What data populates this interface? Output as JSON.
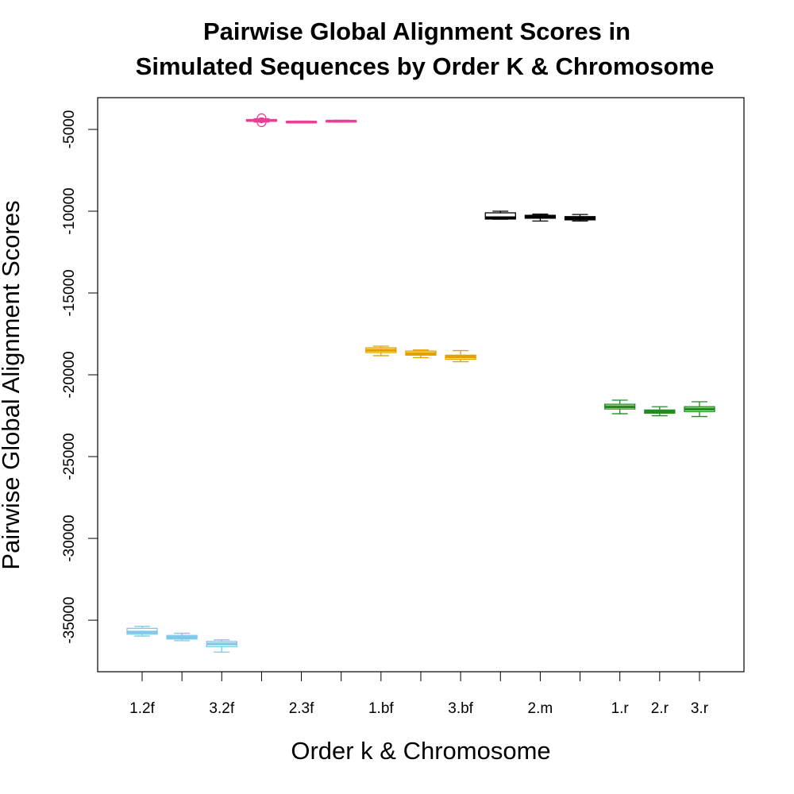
{
  "chart_data": {
    "type": "box",
    "title_lines": [
      "Pairwise Global Alignment Scores in",
      "Simulated Sequences by Order K & Chromosome"
    ],
    "x_label": "Order k & Chromosome",
    "y_label": "Pairwise Global Alignment Scores",
    "categories": [
      "1.2f",
      null,
      "3.2f",
      null,
      "2.3f",
      null,
      "1.bf",
      null,
      "3.bf",
      null,
      "2.m",
      null,
      "1.r",
      "2.r",
      "3.r"
    ],
    "colors": [
      "#7ec8e8",
      "#7ec8e8",
      "#7ec8e8",
      "#ee3d96",
      "#ee3d96",
      "#ee3d96",
      "#e69f00",
      "#e69f00",
      "#e69f00",
      "#000000",
      "#000000",
      "#000000",
      "#228b22",
      "#228b22",
      "#228b22"
    ],
    "boxes": [
      {
        "low": -35970,
        "q1": -35850,
        "median": -35730,
        "q3": -35500,
        "high": -35380
      },
      {
        "low": -36250,
        "q1": -36150,
        "median": -36050,
        "q3": -35930,
        "high": -35800
      },
      {
        "low": -36950,
        "q1": -36620,
        "median": -36450,
        "q3": -36300,
        "high": -36200
      },
      {
        "low": -4550,
        "q1": -4500,
        "median": -4450,
        "q3": -4400,
        "high": -4350,
        "outliers": [
          -4320,
          -4560
        ]
      },
      {
        "low": -4600,
        "q1": -4580,
        "median": -4550,
        "q3": -4520,
        "high": -4490
      },
      {
        "low": -4560,
        "q1": -4540,
        "median": -4500,
        "q3": -4470,
        "high": -4440
      },
      {
        "low": -18830,
        "q1": -18640,
        "median": -18500,
        "q3": -18350,
        "high": -18250
      },
      {
        "low": -18950,
        "q1": -18800,
        "median": -18700,
        "q3": -18550,
        "high": -18480
      },
      {
        "low": -19200,
        "q1": -19050,
        "median": -18900,
        "q3": -18800,
        "high": -18520
      },
      {
        "low": -10490,
        "q1": -10480,
        "median": -10400,
        "q3": -10100,
        "high": -10000
      },
      {
        "low": -10600,
        "q1": -10430,
        "median": -10330,
        "q3": -10250,
        "high": -10180
      },
      {
        "low": -10600,
        "q1": -10530,
        "median": -10430,
        "q3": -10330,
        "high": -10200
      },
      {
        "low": -22380,
        "q1": -22090,
        "median": -21950,
        "q3": -21800,
        "high": -21550
      },
      {
        "low": -22500,
        "q1": -22350,
        "median": -22250,
        "q3": -22150,
        "high": -21950
      },
      {
        "low": -22550,
        "q1": -22250,
        "median": -22100,
        "q3": -21950,
        "high": -21650
      }
    ],
    "ylim": [
      -38150,
      -3060
    ],
    "yticks": [
      -35000,
      -30000,
      -25000,
      -20000,
      -15000,
      -10000,
      -5000
    ]
  }
}
